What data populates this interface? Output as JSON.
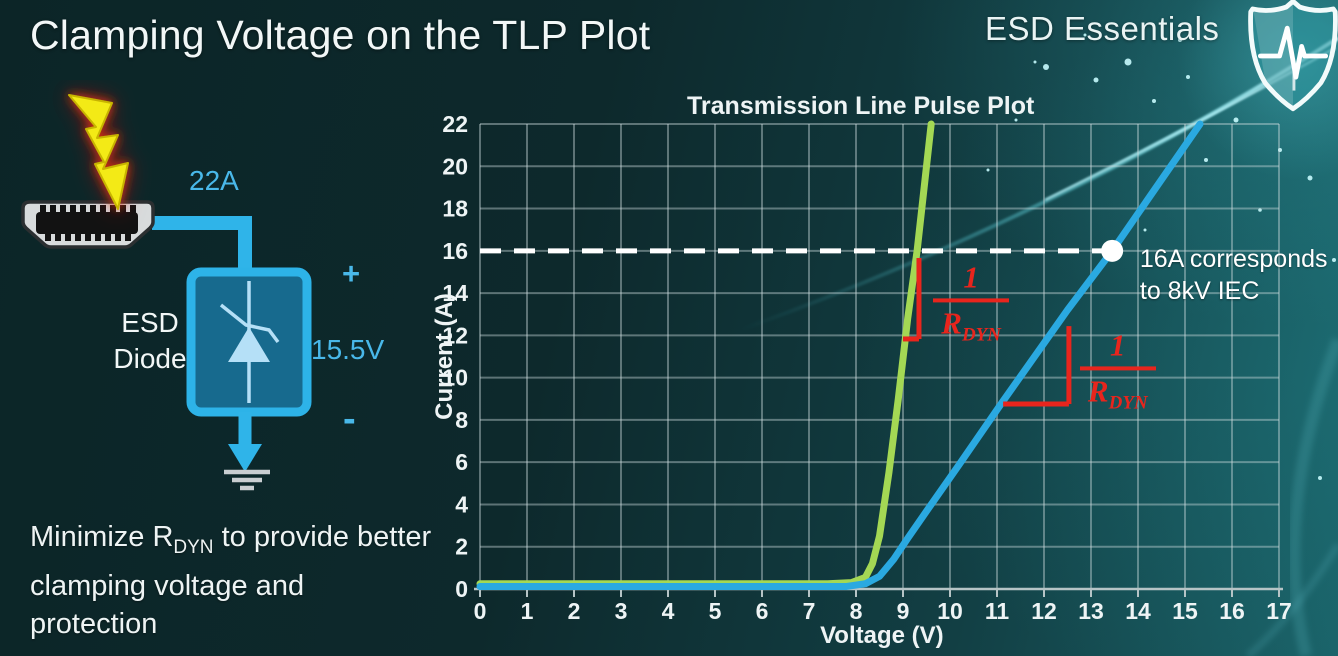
{
  "slide": {
    "title": "Clamping Voltage on the TLP Plot",
    "brand": "ESD Essentials",
    "note": {
      "prefix": "Minimize R",
      "sub": "DYN",
      "rest": " to provide better clamping voltage and protection"
    }
  },
  "diagram": {
    "surge_current_label": "22A",
    "device_label_line1": "ESD",
    "device_label_line2": "Diode",
    "plus_label": "+",
    "clamp_voltage_label": "15.5V",
    "minus_label": "-",
    "colors": {
      "wire": "#2fb4e9",
      "bolt": "#f3ea15",
      "bolt_glow": "#e03018"
    }
  },
  "chart_data": {
    "type": "line",
    "title": "Transmission Line Pulse Plot",
    "xlabel": "Voltage (V)",
    "ylabel": "Current (A)",
    "xlim": [
      0,
      17
    ],
    "ylim": [
      0,
      22
    ],
    "xticks": [
      0,
      1,
      2,
      3,
      4,
      5,
      6,
      7,
      8,
      9,
      10,
      11,
      12,
      13,
      14,
      15,
      16,
      17
    ],
    "yticks": [
      0,
      2,
      4,
      6,
      8,
      10,
      12,
      14,
      16,
      18,
      20,
      22
    ],
    "grid": true,
    "legend": "none",
    "series": [
      {
        "name": "low_rdyn_diode_green",
        "color": "#a4d854",
        "points": [
          [
            0,
            0.25
          ],
          [
            7.4,
            0.25
          ],
          [
            7.9,
            0.3
          ],
          [
            8.2,
            0.55
          ],
          [
            8.35,
            1.2
          ],
          [
            8.5,
            2.5
          ],
          [
            8.7,
            5.5
          ],
          [
            8.9,
            9
          ],
          [
            9.1,
            12.8
          ],
          [
            9.3,
            16
          ],
          [
            9.6,
            22
          ]
        ]
      },
      {
        "name": "high_rdyn_diode_blue",
        "color": "#2aa9e1",
        "points": [
          [
            0,
            0.12
          ],
          [
            7.8,
            0.12
          ],
          [
            8.2,
            0.25
          ],
          [
            8.5,
            0.6
          ],
          [
            8.8,
            1.4
          ],
          [
            9.1,
            2.4
          ],
          [
            9.6,
            4.0
          ],
          [
            10.2,
            5.9
          ],
          [
            11.1,
            8.8
          ],
          [
            12.5,
            13.2
          ],
          [
            13.45,
            16
          ],
          [
            15.32,
            22
          ]
        ]
      }
    ],
    "reference_line": {
      "y": 16,
      "x_start": 0,
      "x_end": 13.3,
      "style": "dashed",
      "color": "#ffffff"
    },
    "marker": {
      "x": 13.45,
      "y": 16,
      "color": "#ffffff",
      "label_line1": "16A corresponds",
      "label_line2": "to 8kV IEC",
      "label_x": 14.04
    },
    "annotations": [
      {
        "name": "green_slope",
        "color": "#e8251d",
        "num": "1",
        "den_base": "R",
        "den_sub": "DYN",
        "vline": {
          "x": 9.34,
          "y1": 15.66,
          "y2": 11.83
        },
        "hline": {
          "y": 11.83,
          "x1": 9.0,
          "x2": 9.34
        },
        "frac_center": {
          "x": 10.45,
          "y": 13.55
        }
      },
      {
        "name": "blue_slope",
        "color": "#e8251d",
        "num": "1",
        "den_base": "R",
        "den_sub": "DYN",
        "vline": {
          "x": 12.53,
          "y1": 12.44,
          "y2": 8.75
        },
        "hline": {
          "y": 8.75,
          "x1": 11.13,
          "x2": 12.53
        },
        "frac_center": {
          "x": 13.57,
          "y": 10.3
        }
      }
    ]
  }
}
